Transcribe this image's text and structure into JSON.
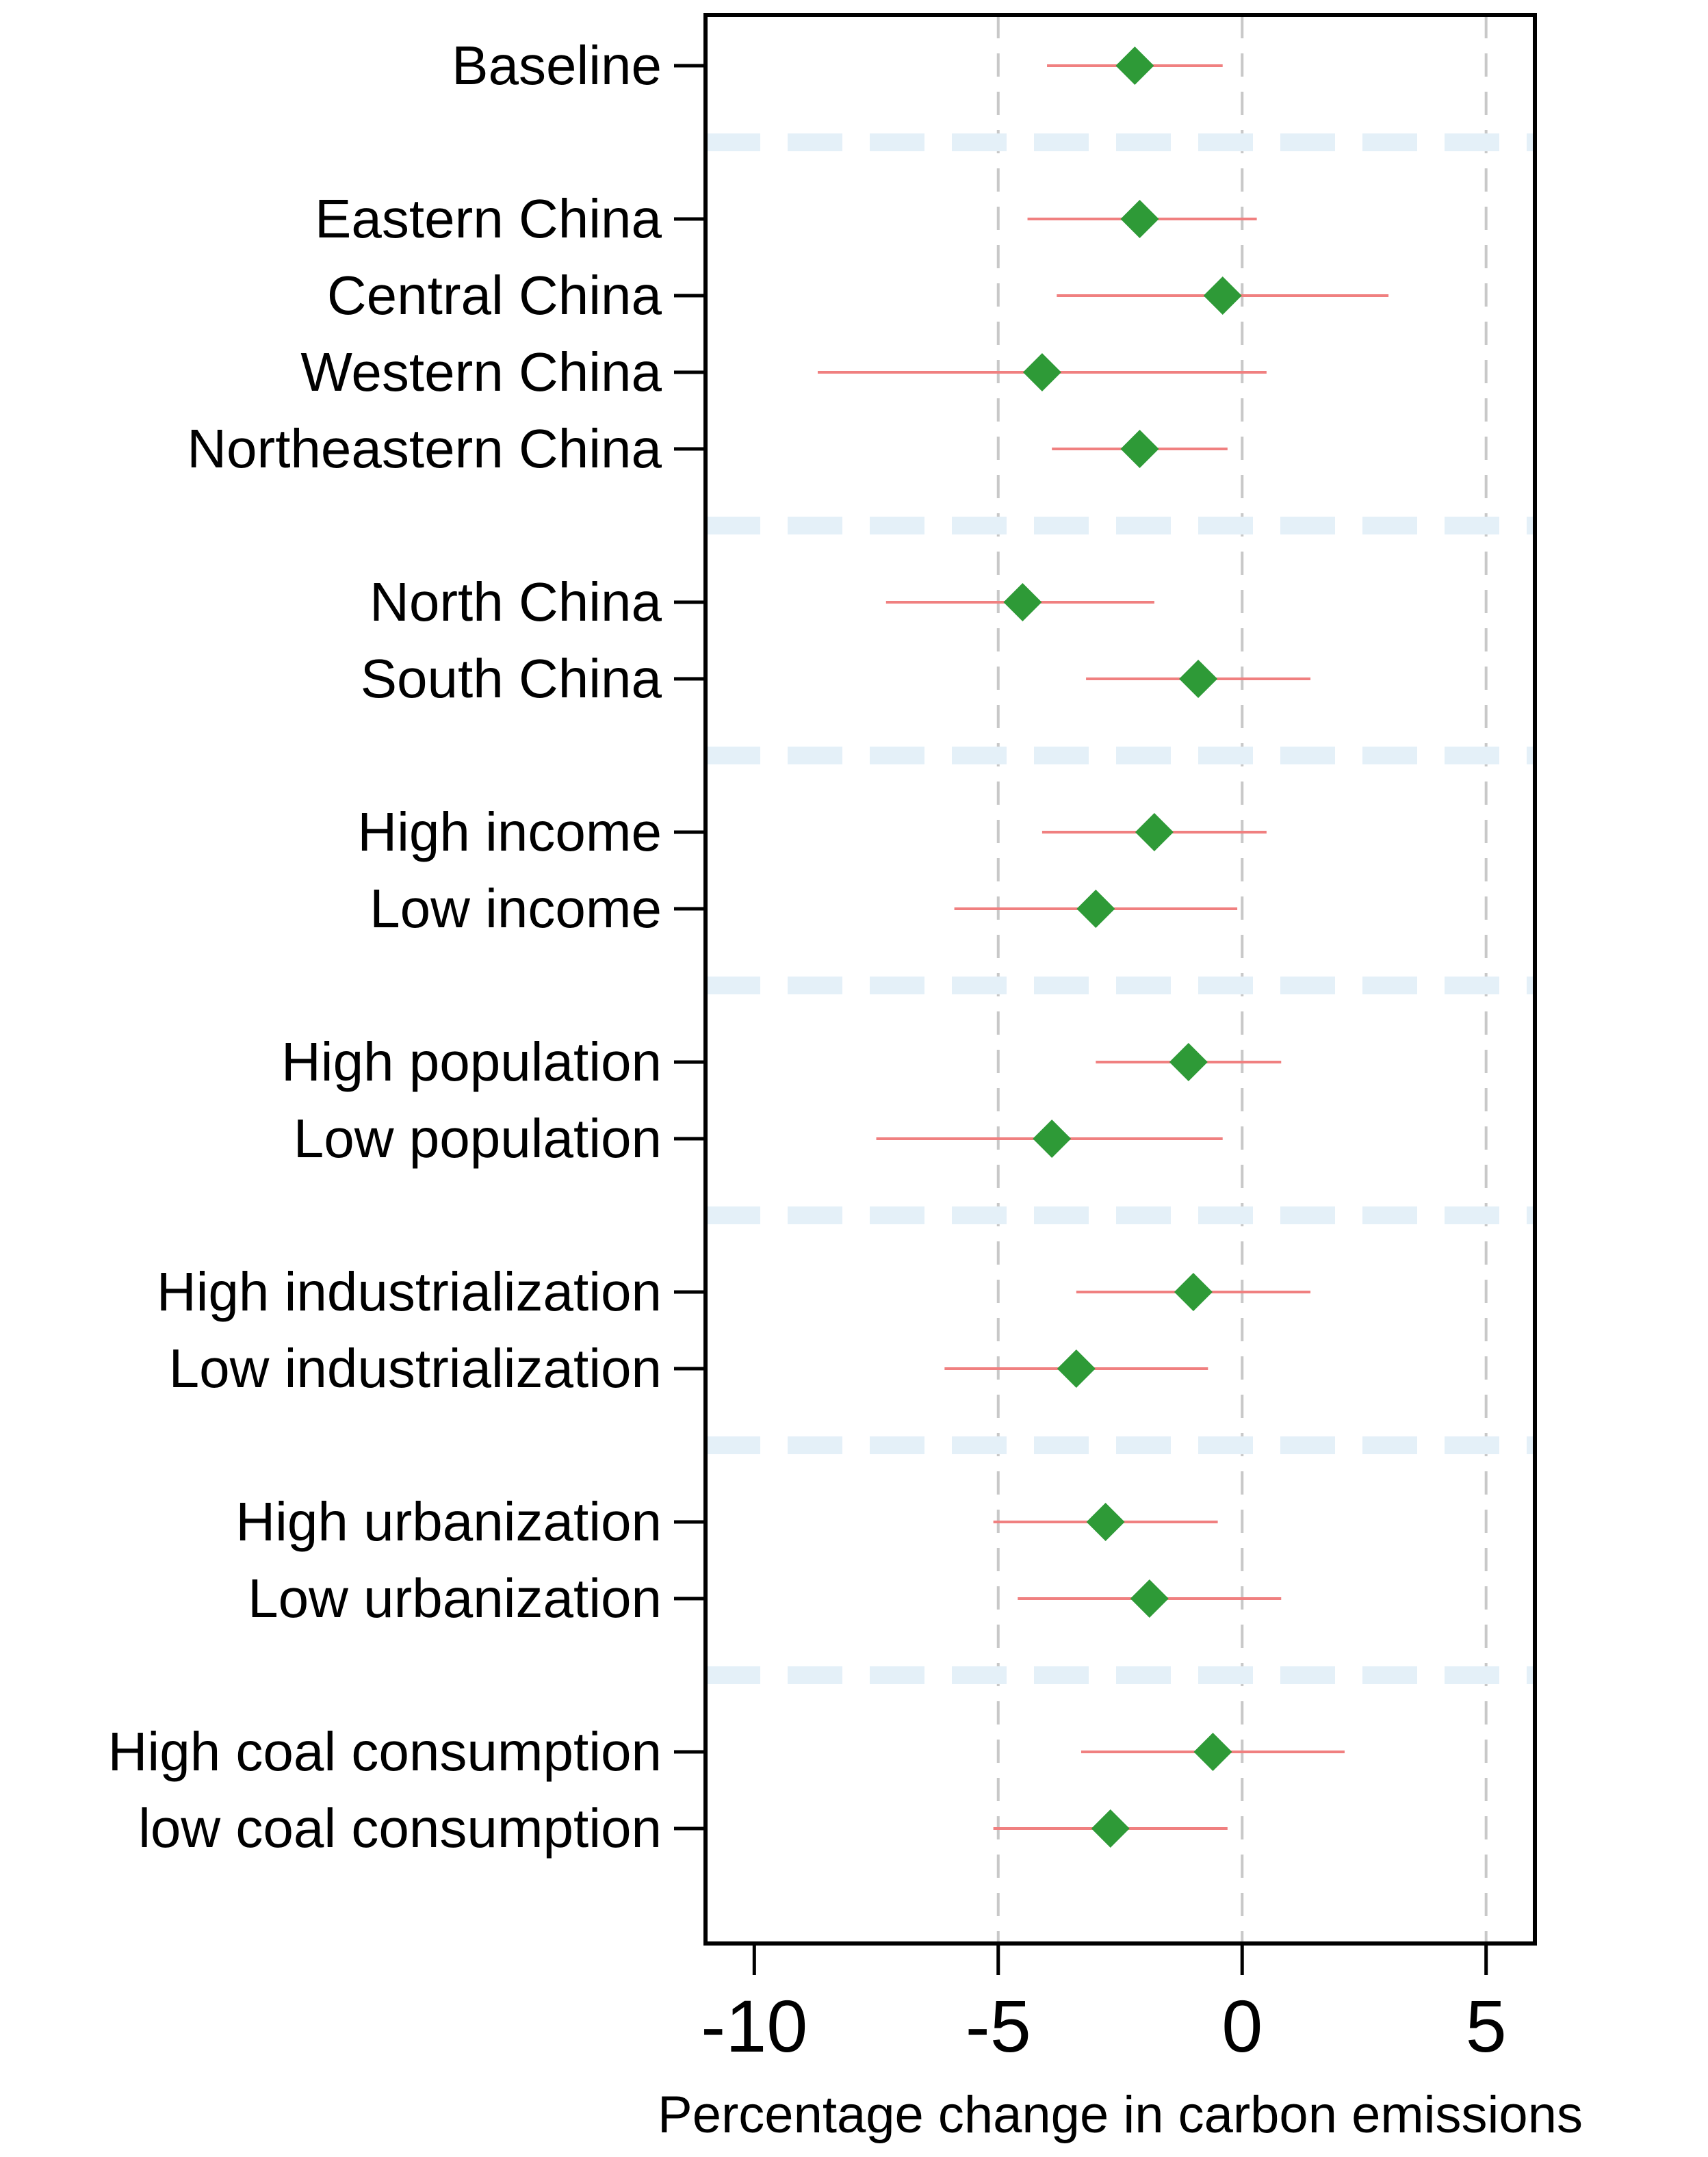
{
  "chart_data": {
    "type": "forest",
    "title": "",
    "xlabel": "Percentage change in carbon emissions",
    "ylabel": "",
    "xlim": [
      -11,
      6
    ],
    "xticks": [
      -10,
      -5,
      0,
      5
    ],
    "xtick_labels": [
      "-10",
      "-5",
      "0",
      "5"
    ],
    "reference_lines": [
      -5,
      0,
      5
    ],
    "colors": {
      "point": "#2e9a37",
      "interval": "#f08080",
      "group_separator": "#e4f0f8",
      "reference_line": "#c8c8c8",
      "axis": "#000000"
    },
    "groups": [
      {
        "rows": [
          {
            "label": "Baseline",
            "estimate": -2.2,
            "lower": -4.0,
            "upper": -0.4
          }
        ]
      },
      {
        "rows": [
          {
            "label": "Eastern China",
            "estimate": -2.1,
            "lower": -4.4,
            "upper": 0.3
          },
          {
            "label": "Central China",
            "estimate": -0.4,
            "lower": -3.8,
            "upper": 3.0
          },
          {
            "label": "Western China",
            "estimate": -4.1,
            "lower": -8.7,
            "upper": 0.5
          },
          {
            "label": "Northeastern China",
            "estimate": -2.1,
            "lower": -3.9,
            "upper": -0.3
          }
        ]
      },
      {
        "rows": [
          {
            "label": "North China",
            "estimate": -4.5,
            "lower": -7.3,
            "upper": -1.8
          },
          {
            "label": "South China",
            "estimate": -0.9,
            "lower": -3.2,
            "upper": 1.4
          }
        ]
      },
      {
        "rows": [
          {
            "label": "High income",
            "estimate": -1.8,
            "lower": -4.1,
            "upper": 0.5
          },
          {
            "label": "Low income",
            "estimate": -3.0,
            "lower": -5.9,
            "upper": -0.1
          }
        ]
      },
      {
        "rows": [
          {
            "label": "High population",
            "estimate": -1.1,
            "lower": -3.0,
            "upper": 0.8
          },
          {
            "label": "Low population",
            "estimate": -3.9,
            "lower": -7.5,
            "upper": -0.4
          }
        ]
      },
      {
        "rows": [
          {
            "label": "High industrialization",
            "estimate": -1.0,
            "lower": -3.4,
            "upper": 1.4
          },
          {
            "label": "Low industrialization",
            "estimate": -3.4,
            "lower": -6.1,
            "upper": -0.7
          }
        ]
      },
      {
        "rows": [
          {
            "label": "High urbanization",
            "estimate": -2.8,
            "lower": -5.1,
            "upper": -0.5
          },
          {
            "label": "Low urbanization",
            "estimate": -1.9,
            "lower": -4.6,
            "upper": 0.8
          }
        ]
      },
      {
        "rows": [
          {
            "label": "High coal consumption",
            "estimate": -0.6,
            "lower": -3.3,
            "upper": 2.1
          },
          {
            "label": "low coal consumption",
            "estimate": -2.7,
            "lower": -5.1,
            "upper": -0.3
          }
        ]
      }
    ]
  }
}
